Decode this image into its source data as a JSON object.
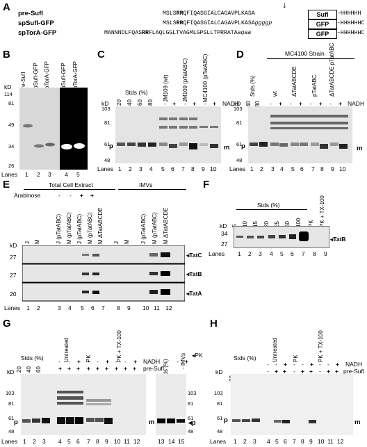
{
  "panelA": {
    "label": "A",
    "rows": [
      {
        "name": "pre-SufI",
        "seq_pre": "MSLS",
        "seq_rr": "RR",
        "seq_mid": "QFIQASGIALCAGAVPLKASA",
        "seq_tail": "",
        "box": "SufI",
        "his": "–HHHHHH"
      },
      {
        "name": "spSufI-GFP",
        "seq_pre": "MSLS",
        "seq_rr": "RR",
        "seq_mid": "QFIQASGIALCAGAVPLKASA",
        "seq_tail": "ggggp",
        "box": "GFP",
        "his": "–HHHHHHC"
      },
      {
        "name": "spTorA-GFP",
        "seq_pre": "MANNNDLFQAS",
        "seq_rr": "RR",
        "seq_mid": "FLAQLGGLTVAGMLGPSLLTPRRATA",
        "seq_tail": "aqaa",
        "box": "GFP",
        "his": "–HHHHHHC"
      }
    ],
    "arrow": "↓"
  },
  "panelB": {
    "label": "B",
    "kd_label": "kD",
    "markers": [
      "114",
      "81",
      "49",
      "34",
      "26"
    ],
    "lanes_title": "Lanes",
    "lane_labels": [
      "pre-SufI",
      "spSufI-GFP",
      "spTorA-GFP",
      "spSufI-GFP",
      "spTorA-GFP"
    ],
    "lane_numbers": [
      "1",
      "2",
      "3",
      "4",
      "5"
    ]
  },
  "panelC": {
    "label": "C",
    "stds": "Stds (%)",
    "std_values": [
      "20",
      "40",
      "60",
      "80"
    ],
    "strains": [
      "JM109 (wt)",
      "JM109 (pTatABC)",
      "MC4100 (pTatABC)"
    ],
    "kd_label": "kD",
    "markers": [
      "103",
      "81",
      "61",
      "48"
    ],
    "pm": [
      "p",
      "m"
    ],
    "nadh_label": "NADH",
    "nadh_signs": [
      "-",
      "+",
      "-",
      "+",
      "-",
      "+"
    ],
    "lanes_title": "Lanes",
    "lane_numbers": [
      "1",
      "2",
      "3",
      "4",
      "5",
      "6",
      "7",
      "8",
      "9",
      "10"
    ]
  },
  "panelD": {
    "label": "D",
    "strain_header": "MC4100 Strain",
    "stds": "Stds (%)",
    "std_values": [
      "40",
      "80"
    ],
    "strains": [
      "wt",
      "ΔTatABCDE",
      "pTatABC",
      "ΔTatABCDE pTatABC"
    ],
    "kd_label": "kD",
    "markers": [
      "103",
      "81",
      "61",
      "48"
    ],
    "pm": [
      "p",
      "m"
    ],
    "nadh_label": "NADH",
    "nadh_signs": [
      "-",
      "+",
      "-",
      "+",
      "-",
      "+",
      "-",
      "+"
    ],
    "lanes_title": "Lanes",
    "lane_numbers": [
      "1",
      "2",
      "3",
      "4",
      "5",
      "6",
      "7",
      "8",
      "9",
      "10"
    ]
  },
  "panelE": {
    "label": "E",
    "header_left": "Total Cell Extract",
    "header_right": "IMVs",
    "arabinose_label": "Arabinose",
    "arabinose_signs": [
      "-",
      "-",
      "+",
      "+"
    ],
    "lane_labels": [
      "J",
      "M",
      "J (pTatABC)",
      "M (pTatABC)",
      "J (pTatABC)",
      "M (pTatABC)",
      "M ΔTatABCDE",
      "J",
      "M",
      "J (pTatABC)",
      "M (pTatABC)",
      "M ΔTatABCDE"
    ],
    "kd_label": "kD",
    "strips": [
      {
        "marker": "27",
        "name": "TatC"
      },
      {
        "marker": "27",
        "name": "TatB"
      },
      {
        "marker": "20",
        "name": "TatA"
      }
    ],
    "lanes_title": "Lanes",
    "lane_numbers": [
      "1",
      "2",
      "3",
      "4",
      "5",
      "6",
      "7",
      "8",
      "9",
      "10",
      "11",
      "12"
    ]
  },
  "panelF": {
    "label": "F",
    "stds": "Stds (%)",
    "std_values": [
      "5",
      "10",
      "15",
      "20",
      "25",
      "50",
      "100"
    ],
    "pk_labels": [
      "PK",
      "PK + TX-100"
    ],
    "kd_label": "kD",
    "markers": [
      "34",
      "27"
    ],
    "band": "TatB",
    "lanes_title": "Lanes",
    "lane_numbers": [
      "1",
      "2",
      "3",
      "4",
      "5",
      "6",
      "7",
      "8",
      "9"
    ]
  },
  "panelG": {
    "label": "G",
    "stds": "Stds (%)",
    "std_values": [
      "20",
      "40",
      "60"
    ],
    "groups": [
      "Untreated",
      "PK",
      "PK + TX-100"
    ],
    "nadh_label": "NADH",
    "presufi_label": "pre-SufI",
    "nadh_signs": [
      "-",
      "-",
      "+",
      "-",
      "-",
      "+",
      "-",
      "-",
      "+"
    ],
    "presufi_signs": [
      "+",
      "+",
      "+",
      "+",
      "+",
      "+",
      "+",
      "+",
      "+"
    ],
    "kd_label": "kD",
    "markers": [
      "103",
      "81",
      "61",
      "48"
    ],
    "pm": [
      "p",
      "m"
    ],
    "lanes_title": "Lanes",
    "lane_numbers": [
      "1",
      "2",
      "3",
      "4",
      "5",
      "6",
      "7",
      "8",
      "9",
      "10",
      "11",
      "12"
    ],
    "side": {
      "std_label": "Stds (%)",
      "std_value": "80",
      "imvs": "- IMVs",
      "pk": "PK",
      "signs": [
        "-",
        "+"
      ],
      "markers": [
        "103",
        "81",
        "61",
        "48"
      ],
      "p": "p",
      "lane_numbers": [
        "13",
        "14",
        "15"
      ]
    }
  },
  "panelH": {
    "label": "H",
    "stds": "Stds (%)",
    "std_values": [
      "20",
      "40",
      "60"
    ],
    "groups": [
      "Untreated",
      "PK",
      "PK + TX-100"
    ],
    "nadh_label": "NADH",
    "presufi_label": "pre-SufI",
    "nadh_signs": [
      "-",
      "-",
      "+",
      "-",
      "-",
      "+",
      "-",
      "-",
      "+"
    ],
    "presufi_signs": [
      "-",
      "+",
      "+",
      "-",
      "+",
      "+",
      "-",
      "+",
      "+"
    ],
    "kd_label": "kD",
    "markers": [
      "103",
      "81",
      "61",
      "48"
    ],
    "pm": [
      "p",
      "m"
    ],
    "lanes_title": "Lanes",
    "lane_numbers": [
      "1",
      "2",
      "3",
      "4",
      "5",
      "6",
      "7",
      "8",
      "9",
      "10",
      "11",
      "12"
    ]
  }
}
